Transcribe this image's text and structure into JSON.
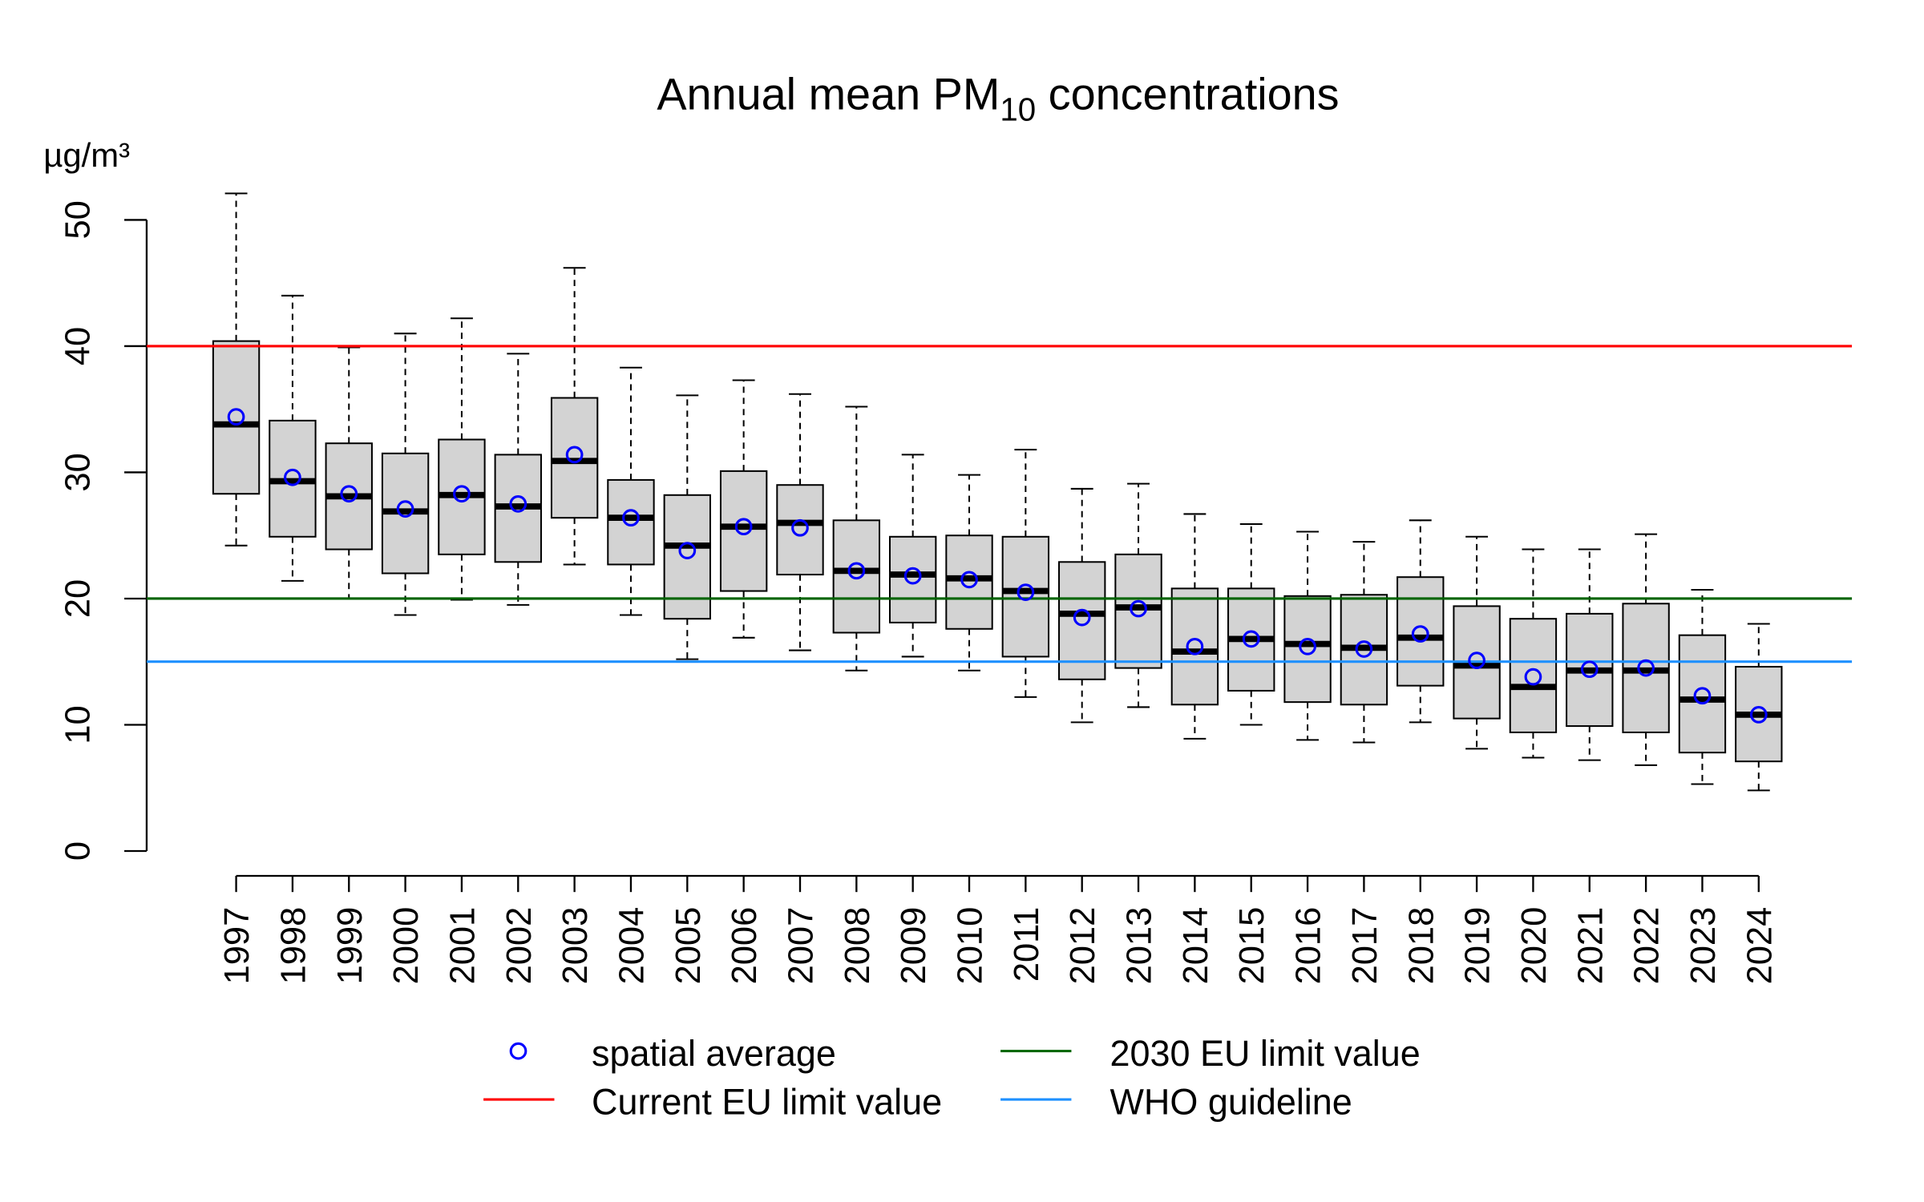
{
  "chart_data": {
    "type": "box",
    "title": [
      {
        "text": "Annual mean PM"
      },
      {
        "text": "10",
        "sub": true
      },
      {
        "text": " concentrations"
      }
    ],
    "y_label": "µg/m³",
    "categories": [
      "1997",
      "1998",
      "1999",
      "2000",
      "2001",
      "2002",
      "2003",
      "2004",
      "2005",
      "2006",
      "2007",
      "2008",
      "2009",
      "2010",
      "2011",
      "2012",
      "2013",
      "2014",
      "2015",
      "2016",
      "2017",
      "2018",
      "2019",
      "2020",
      "2021",
      "2022",
      "2023",
      "2024"
    ],
    "whisker_high": [
      52.1,
      44.0,
      39.9,
      41.0,
      42.2,
      39.4,
      46.2,
      38.3,
      36.1,
      37.3,
      36.2,
      35.2,
      31.4,
      29.8,
      31.8,
      28.7,
      29.1,
      26.7,
      25.9,
      25.3,
      24.5,
      26.2,
      24.9,
      23.9,
      23.9,
      25.1,
      20.7,
      18.0
    ],
    "q3": [
      40.4,
      34.1,
      32.3,
      31.5,
      32.6,
      31.4,
      35.9,
      29.4,
      28.2,
      30.1,
      29.0,
      26.2,
      24.9,
      25.0,
      24.9,
      22.9,
      23.5,
      20.8,
      20.8,
      20.2,
      20.3,
      21.7,
      19.4,
      18.4,
      18.8,
      19.6,
      17.1,
      14.6
    ],
    "median": [
      33.8,
      29.3,
      28.1,
      26.9,
      28.2,
      27.3,
      30.9,
      26.4,
      24.2,
      25.7,
      26.0,
      22.2,
      21.9,
      21.6,
      20.6,
      18.8,
      19.3,
      15.8,
      16.8,
      16.4,
      16.1,
      16.9,
      14.7,
      13.0,
      14.3,
      14.3,
      12.0,
      10.8
    ],
    "q1": [
      28.3,
      24.9,
      23.9,
      22.0,
      23.5,
      22.9,
      26.4,
      22.7,
      18.4,
      20.6,
      21.9,
      17.3,
      18.1,
      17.6,
      15.4,
      13.6,
      14.5,
      11.6,
      12.7,
      11.8,
      11.6,
      13.1,
      10.5,
      9.4,
      9.9,
      9.4,
      7.8,
      7.1
    ],
    "whisker_low": [
      24.2,
      21.4,
      20.0,
      18.7,
      19.9,
      19.5,
      22.7,
      18.7,
      15.2,
      16.9,
      15.9,
      14.3,
      15.4,
      14.3,
      12.2,
      10.2,
      11.4,
      8.9,
      10.0,
      8.8,
      8.6,
      10.2,
      8.1,
      7.4,
      7.2,
      6.8,
      5.3,
      4.8
    ],
    "mean": {
      "name": "spatial average",
      "color": "#0000ff",
      "values": [
        34.4,
        29.6,
        28.3,
        27.1,
        28.3,
        27.5,
        31.4,
        26.4,
        23.8,
        25.7,
        25.6,
        22.2,
        21.8,
        21.5,
        20.5,
        18.5,
        19.2,
        16.2,
        16.8,
        16.2,
        16.0,
        17.2,
        15.1,
        13.8,
        14.4,
        14.5,
        12.3,
        10.8
      ]
    },
    "box_color": "#d3d3d3",
    "reference_lines": [
      {
        "name": "Current EU limit value",
        "value": 40,
        "color": "#ff0000"
      },
      {
        "name": "2030 EU limit value",
        "value": 20,
        "color": "#006400"
      },
      {
        "name": "WHO guideline",
        "value": 15,
        "color": "#1e90ff"
      }
    ],
    "ylim": [
      0,
      50
    ],
    "yticks": [
      0,
      10,
      20,
      30,
      40,
      50
    ],
    "legend": "bottom"
  }
}
